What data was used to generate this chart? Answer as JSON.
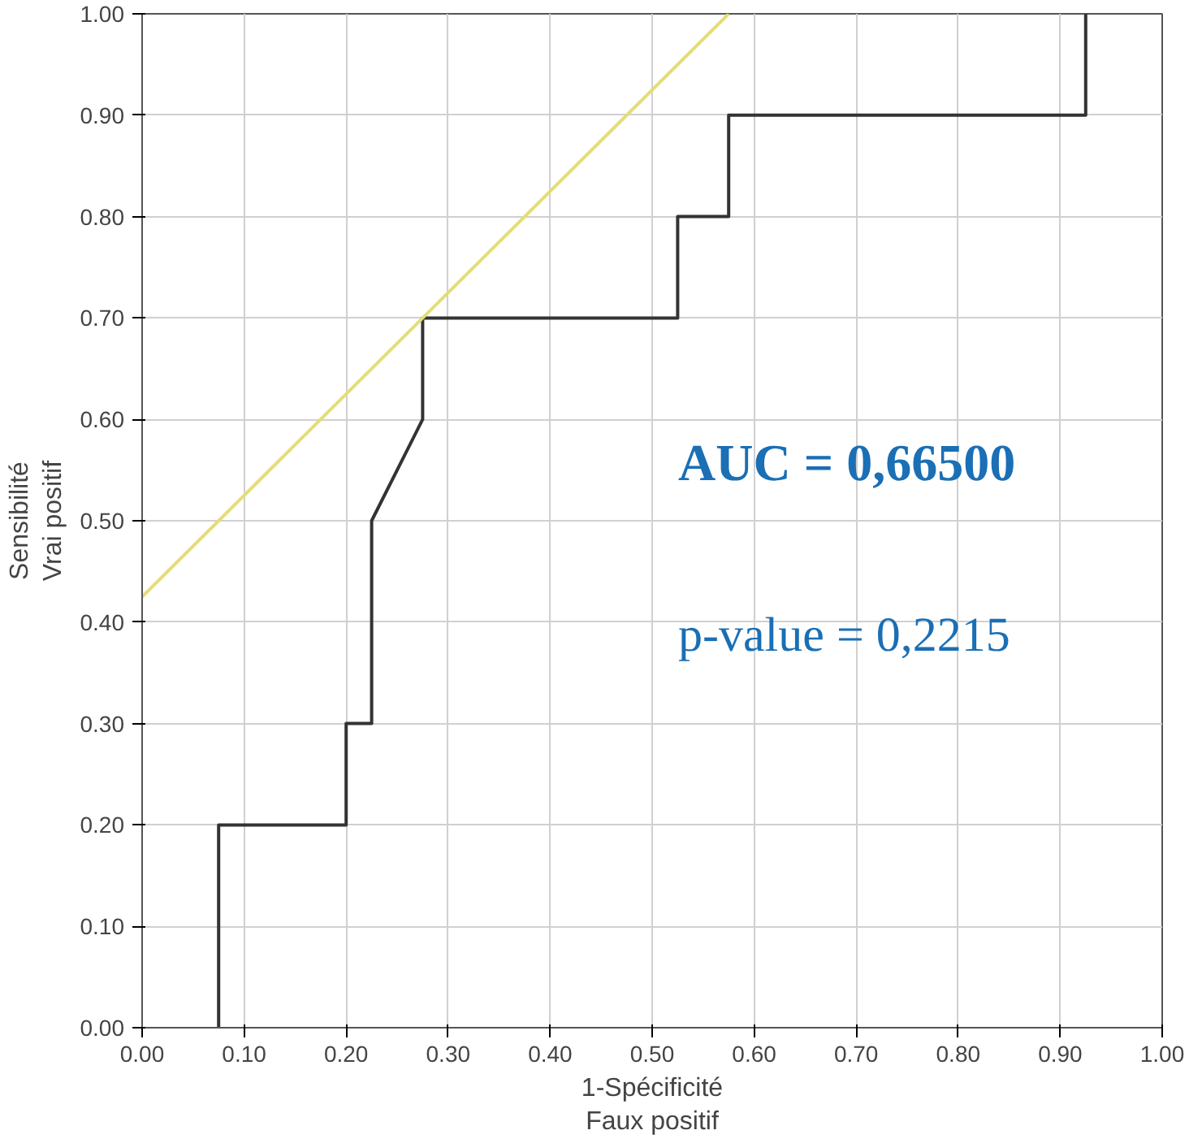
{
  "chart_data": {
    "type": "line",
    "xlabel": "1-Spécificité\nFaux positif",
    "ylabel": "Sensibilité\nVrai positif",
    "series": [
      {
        "color": "#333333",
        "x": [
          0.075,
          0.075,
          0.2,
          0.2,
          0.225,
          0.225,
          0.275,
          0.275,
          0.525,
          0.525,
          0.575,
          0.575,
          0.925,
          0.925
        ],
        "values": [
          0,
          0.2,
          0.2,
          0.3,
          0.3,
          0.5,
          0.6,
          0.7,
          0.7,
          0.8,
          0.8,
          0.9,
          0.9,
          1.0
        ]
      },
      {
        "color": "#e6dc78",
        "x": [
          0,
          0.575
        ],
        "values": [
          0.425,
          1.0
        ]
      }
    ],
    "annotations": [
      "AUC = 0,66500",
      "p-value = 0,2215"
    ],
    "xlim": [
      0,
      1
    ],
    "ylim": [
      0,
      1
    ],
    "xticks": [
      {
        "value": 0,
        "label": "0.00"
      },
      {
        "value": 0.1,
        "label": "0.10"
      },
      {
        "value": 0.2,
        "label": "0.20"
      },
      {
        "value": 0.3,
        "label": "0.30"
      },
      {
        "value": 0.4,
        "label": "0.40"
      },
      {
        "value": 0.5,
        "label": "0.50"
      },
      {
        "value": 0.6,
        "label": "0.60"
      },
      {
        "value": 0.7,
        "label": "0.70"
      },
      {
        "value": 0.8,
        "label": "0.80"
      },
      {
        "value": 0.9,
        "label": "0.90"
      },
      {
        "value": 1,
        "label": "1.00"
      }
    ],
    "yticks": [
      {
        "value": 0,
        "label": "0.00"
      },
      {
        "value": 0.1,
        "label": "0.10"
      },
      {
        "value": 0.2,
        "label": "0.20"
      },
      {
        "value": 0.3,
        "label": "0.30"
      },
      {
        "value": 0.4,
        "label": "0.40"
      },
      {
        "value": 0.5,
        "label": "0.50"
      },
      {
        "value": 0.6,
        "label": "0.60"
      },
      {
        "value": 0.7,
        "label": "0.70"
      },
      {
        "value": 0.8,
        "label": "0.80"
      },
      {
        "value": 0.9,
        "label": "0.90"
      },
      {
        "value": 1,
        "label": "1.00"
      }
    ],
    "grid": true,
    "marker": "none",
    "line_style": "solid"
  }
}
